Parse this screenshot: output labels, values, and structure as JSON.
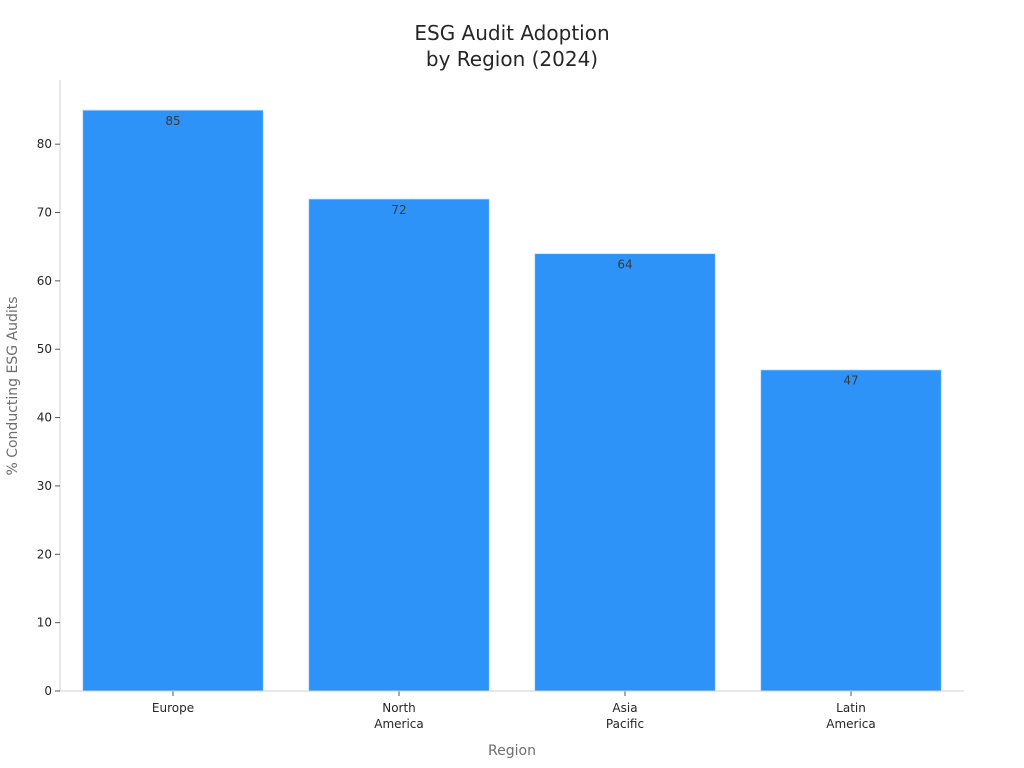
{
  "chart_data": {
    "type": "bar",
    "title_lines": [
      "ESG Audit Adoption",
      "by Region (2024)"
    ],
    "xlabel": "Region",
    "ylabel": "% Conducting ESG Audits",
    "categories": [
      [
        "Europe"
      ],
      [
        "North",
        "America"
      ],
      [
        "Asia",
        "Pacific"
      ],
      [
        "Latin",
        "America"
      ]
    ],
    "values": [
      85,
      72,
      64,
      47
    ],
    "ylim": [
      0,
      90
    ],
    "yticks": [
      0,
      10,
      20,
      30,
      40,
      50,
      60,
      70,
      80
    ],
    "bar_color": "#2e93f9",
    "grid": false,
    "legend": "none"
  }
}
